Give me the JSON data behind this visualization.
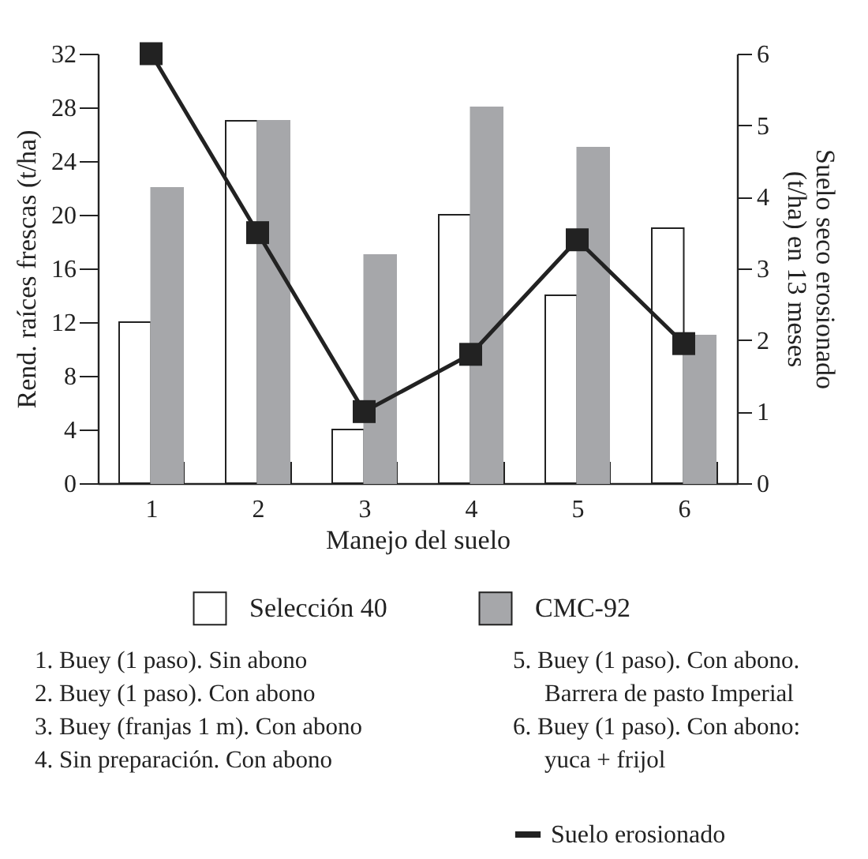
{
  "chart_data": {
    "type": "bar",
    "categories": [
      "1",
      "2",
      "3",
      "4",
      "5",
      "6"
    ],
    "xlabel": "Manejo del suelo",
    "ylabel": "Rend. raíces frescas (t/ha)",
    "y2label": "Suelo seco erosionado (t/ha) en 13 meses",
    "ylim": [
      0,
      32
    ],
    "yticks": [
      0,
      4,
      8,
      12,
      16,
      20,
      24,
      28,
      32
    ],
    "y2lim": [
      0,
      6
    ],
    "y2ticks": [
      0,
      1,
      2,
      3,
      4,
      5,
      6
    ],
    "series": [
      {
        "name": "Selección 40",
        "color": "#ffffff",
        "values": [
          12,
          27,
          4,
          20,
          14,
          19
        ]
      },
      {
        "name": "CMC-92",
        "color": "#a6a7aa",
        "values": [
          22,
          27,
          17,
          28,
          25,
          11
        ]
      },
      {
        "name": "Suelo erosionado",
        "type": "line",
        "axis": "y2",
        "color": "#222222",
        "values": [
          6,
          3.5,
          1.0,
          1.8,
          3.4,
          1.95
        ]
      }
    ],
    "marker": "square",
    "legend": "bottom",
    "grid": false,
    "annotations": [
      "1. Buey (1 paso). Sin abono",
      "2. Buey (1 paso). Con abono",
      "3. Buey (franjas 1 m). Con abono",
      "4. Sin preparación. Con abono",
      "5. Buey (1 paso). Con abono. Barrera de pasto Imperial",
      "6. Buey (1 paso). Con abono: yuca + frijol"
    ]
  }
}
